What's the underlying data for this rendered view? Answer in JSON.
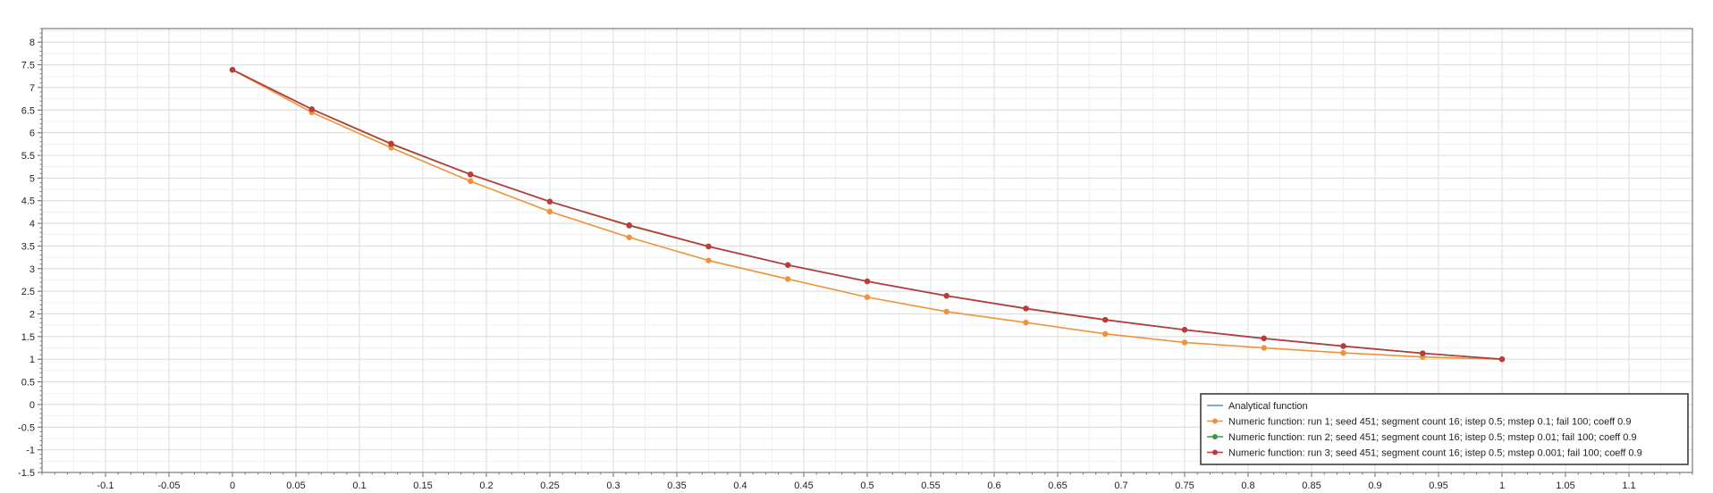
{
  "chart_data": {
    "type": "line",
    "xlim": [
      -0.15,
      1.15
    ],
    "ylim": [
      -1.5,
      8.3
    ],
    "x_ticks": [
      -0.1,
      -0.05,
      0,
      0.05,
      0.1,
      0.15,
      0.2,
      0.25,
      0.3,
      0.35,
      0.4,
      0.45,
      0.5,
      0.55,
      0.6,
      0.65,
      0.7,
      0.75,
      0.8,
      0.85,
      0.9,
      0.95,
      1,
      1.05,
      1.1
    ],
    "x_tick_labels": [
      "-0.1",
      "-0.05",
      "0",
      "0.05",
      "0.1",
      "0.15",
      "0.2",
      "0.25",
      "0.3",
      "0.35",
      "0.4",
      "0.45",
      "0.5",
      "0.55",
      "0.6",
      "0.65",
      "0.7",
      "0.75",
      "0.8",
      "0.85",
      "0.9",
      "0.95",
      "1",
      "1.05",
      "1.1"
    ],
    "y_ticks": [
      -1.5,
      -1,
      -0.5,
      0,
      0.5,
      1,
      1.5,
      2,
      2.5,
      3,
      3.5,
      4,
      4.5,
      5,
      5.5,
      6,
      6.5,
      7,
      7.5,
      8
    ],
    "y_tick_labels": [
      "-1.5",
      "-1",
      "-0.5",
      "0",
      "0.5",
      "1",
      "1.5",
      "2",
      "2.5",
      "3",
      "3.5",
      "4",
      "4.5",
      "5",
      "5.5",
      "6",
      "6.5",
      "7",
      "7.5",
      "8"
    ],
    "grid": true,
    "legend_position": "bottom-right",
    "series": [
      {
        "name": "Analytical function",
        "color": "#5b8fbf",
        "markers": false,
        "x": [
          0,
          0.0625,
          0.125,
          0.1875,
          0.25,
          0.3125,
          0.375,
          0.4375,
          0.5,
          0.5625,
          0.625,
          0.6875,
          0.75,
          0.8125,
          0.875,
          0.9375,
          1
        ],
        "y": [
          7.389,
          6.52,
          5.755,
          5.078,
          4.482,
          3.955,
          3.49,
          3.08,
          2.718,
          2.399,
          2.117,
          1.868,
          1.649,
          1.455,
          1.284,
          1.133,
          1.0
        ]
      },
      {
        "name": "Numeric function: run 1; seed 451; segment count 16; istep 0.5; mstep 0.1; fail 100; coeff 0.9",
        "color": "#f0923a",
        "markers": true,
        "x": [
          0,
          0.0625,
          0.125,
          0.1875,
          0.25,
          0.3125,
          0.375,
          0.4375,
          0.5,
          0.5625,
          0.625,
          0.6875,
          0.75,
          0.8125,
          0.875,
          0.9375,
          1
        ],
        "y": [
          7.39,
          6.45,
          5.67,
          4.93,
          4.26,
          3.69,
          3.18,
          2.77,
          2.37,
          2.05,
          1.81,
          1.56,
          1.37,
          1.25,
          1.14,
          1.05,
          1.0
        ]
      },
      {
        "name": "Numeric function: run 2; seed 451; segment count 16; istep 0.5; mstep 0.01; fail 100; coeff 0.9",
        "color": "#3c9a3c",
        "markers": true,
        "x": [
          0,
          0.0625,
          0.125,
          0.1875,
          0.25,
          0.3125,
          0.375,
          0.4375,
          0.5,
          0.5625,
          0.625,
          0.6875,
          0.75,
          0.8125,
          0.875,
          0.9375,
          1
        ],
        "y": [
          7.39,
          6.52,
          5.75,
          5.08,
          4.48,
          3.95,
          3.49,
          3.08,
          2.72,
          2.4,
          2.12,
          1.87,
          1.65,
          1.46,
          1.29,
          1.13,
          1.0
        ]
      },
      {
        "name": "Numeric function: run 3; seed 451; segment count 16; istep 0.5; mstep 0.001; fail 100; coeff 0.9",
        "color": "#c0393a",
        "markers": true,
        "x": [
          0,
          0.0625,
          0.125,
          0.1875,
          0.25,
          0.3125,
          0.375,
          0.4375,
          0.5,
          0.5625,
          0.625,
          0.6875,
          0.75,
          0.8125,
          0.875,
          0.9375,
          1
        ],
        "y": [
          7.39,
          6.52,
          5.76,
          5.08,
          4.48,
          3.96,
          3.49,
          3.08,
          2.72,
          2.4,
          2.12,
          1.87,
          1.65,
          1.46,
          1.29,
          1.13,
          1.0
        ]
      }
    ]
  }
}
